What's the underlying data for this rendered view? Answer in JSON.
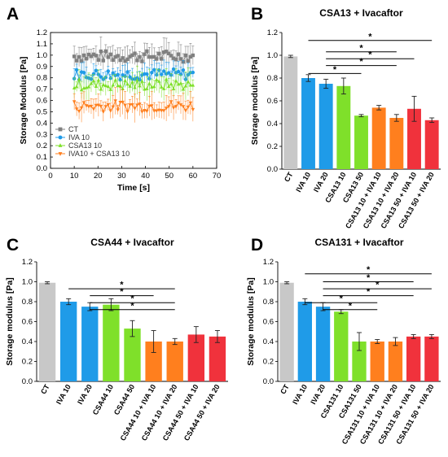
{
  "chart_data": [
    {
      "panel": "A",
      "type": "line",
      "title": "",
      "xlabel": "Time [s]",
      "ylabel": "Storage Modulus [Pa]",
      "xlim": [
        0,
        70
      ],
      "ylim": [
        0,
        1.2
      ],
      "xticks": [
        "0",
        "10",
        "20",
        "30",
        "40",
        "50",
        "60",
        "70"
      ],
      "yticks": [
        "0.0",
        "0.1",
        "0.2",
        "0.3",
        "0.4",
        "0.5",
        "0.6",
        "0.7",
        "0.8",
        "0.9",
        "1.0",
        "1.1",
        "1.2"
      ],
      "legend_position": "bottom-left",
      "series": [
        {
          "name": "CT",
          "color": "#808080",
          "marker": "square",
          "x_start": 10,
          "x_end": 60,
          "points": 50,
          "mean": 0.99,
          "spread": 0.05,
          "err": 0.1
        },
        {
          "name": "IVA 10",
          "color": "#1f9be8",
          "marker": "circle",
          "x_start": 10,
          "x_end": 60,
          "points": 50,
          "mean": 0.83,
          "spread": 0.05,
          "err": 0.08
        },
        {
          "name": "CSA13 10",
          "color": "#7fe02a",
          "marker": "triangle-up",
          "x_start": 10,
          "x_end": 60,
          "points": 50,
          "mean": 0.74,
          "spread": 0.05,
          "err": 0.1
        },
        {
          "name": "IVA10 + CSA13 10",
          "color": "#ff7f1e",
          "marker": "triangle-down",
          "x_start": 10,
          "x_end": 60,
          "points": 50,
          "mean": 0.55,
          "spread": 0.05,
          "err": 0.1
        }
      ]
    },
    {
      "panel": "B",
      "type": "bar",
      "title": "CSA13 + Ivacaftor",
      "xlabel": "",
      "ylabel": "Storage modulus [Pa]",
      "ylim": [
        0,
        1.2
      ],
      "yticks": [
        "0.0",
        "0.2",
        "0.4",
        "0.6",
        "0.8",
        "1.0",
        "1.2"
      ],
      "categories": [
        "CT",
        "IVA 10",
        "IVA 20",
        "CSA13 10",
        "CSA13 50",
        "CSA13 10 + IVA 10",
        "CSA13 10 + IVA 20",
        "CSA13 50 + IVA 10",
        "CSA13 50 + IVA 20"
      ],
      "values": [
        0.99,
        0.8,
        0.75,
        0.73,
        0.47,
        0.54,
        0.45,
        0.53,
        0.43
      ],
      "errors": [
        0.01,
        0.03,
        0.04,
        0.07,
        0.01,
        0.02,
        0.03,
        0.11,
        0.02
      ],
      "colors": [
        "#c8c8c8",
        "#1f9be8",
        "#1f9be8",
        "#7fe02a",
        "#7fe02a",
        "#ff7f1e",
        "#ff7f1e",
        "#f0323c",
        "#f0323c"
      ],
      "brackets": [
        {
          "from": 1,
          "to": 8,
          "y": 1.13,
          "label": "*"
        },
        {
          "from": 2,
          "to": 6,
          "y": 1.03,
          "label": "*"
        },
        {
          "from": 2,
          "to": 7,
          "y": 0.97,
          "label": "*"
        },
        {
          "from": 2,
          "to": 6,
          "y": 0.91,
          "label": "*"
        },
        {
          "from": 1,
          "to": 4,
          "y": 0.84,
          "label": "*"
        }
      ]
    },
    {
      "panel": "C",
      "type": "bar",
      "title": "CSA44 + Ivacaftor",
      "xlabel": "",
      "ylabel": "Storage modulus [Pa]",
      "ylim": [
        0,
        1.2
      ],
      "yticks": [
        "0.0",
        "0.2",
        "0.4",
        "0.6",
        "0.8",
        "1.0",
        "1.2"
      ],
      "categories": [
        "CT",
        "IVA 10",
        "IVA 20",
        "CSA44 10",
        "CSA44 50",
        "CSA44 10 + IVA 10",
        "CSA44 10 + IVA 20",
        "CSA44 50 + IVA 10",
        "CSA44 50 + IVA 20"
      ],
      "values": [
        0.99,
        0.8,
        0.75,
        0.77,
        0.53,
        0.4,
        0.4,
        0.47,
        0.45
      ],
      "errors": [
        0.01,
        0.03,
        0.04,
        0.06,
        0.08,
        0.11,
        0.03,
        0.08,
        0.06
      ],
      "colors": [
        "#c8c8c8",
        "#1f9be8",
        "#1f9be8",
        "#7fe02a",
        "#7fe02a",
        "#ff7f1e",
        "#ff7f1e",
        "#f0323c",
        "#f0323c"
      ],
      "brackets": [
        {
          "from": 1,
          "to": 6,
          "y": 0.93,
          "label": "*"
        },
        {
          "from": 2,
          "to": 5,
          "y": 0.86,
          "label": "*"
        },
        {
          "from": 2,
          "to": 6,
          "y": 0.79,
          "label": "*"
        },
        {
          "from": 2,
          "to": 6,
          "y": 0.72,
          "label": "*"
        }
      ]
    },
    {
      "panel": "D",
      "type": "bar",
      "title": "CSA131 + Ivacaftor",
      "xlabel": "",
      "ylabel": "Storage modulus [Pa]",
      "ylim": [
        0,
        1.2
      ],
      "yticks": [
        "0.0",
        "0.2",
        "0.4",
        "0.6",
        "0.8",
        "1.0",
        "1.2"
      ],
      "categories": [
        "CT",
        "IVA 10",
        "IVA 20",
        "CSA131 10",
        "CSA131 50",
        "CSA131 10 + IVA 10",
        "CSA131 10 + IVA 20",
        "CSA131 50 + IVA 10",
        "CSA131 50 + IVA 20"
      ],
      "values": [
        0.99,
        0.8,
        0.75,
        0.7,
        0.4,
        0.4,
        0.4,
        0.45,
        0.45
      ],
      "errors": [
        0.01,
        0.03,
        0.04,
        0.02,
        0.09,
        0.02,
        0.04,
        0.02,
        0.02
      ],
      "colors": [
        "#c8c8c8",
        "#1f9be8",
        "#1f9be8",
        "#7fe02a",
        "#7fe02a",
        "#ff7f1e",
        "#ff7f1e",
        "#f0323c",
        "#f0323c"
      ],
      "brackets": [
        {
          "from": 1,
          "to": 8,
          "y": 1.08,
          "label": "*"
        },
        {
          "from": 2,
          "to": 7,
          "y": 1.0,
          "label": "*"
        },
        {
          "from": 2,
          "to": 8,
          "y": 0.93,
          "label": "*"
        },
        {
          "from": 2,
          "to": 7,
          "y": 0.86,
          "label": "*"
        },
        {
          "from": 1,
          "to": 5,
          "y": 0.79,
          "label": "*"
        },
        {
          "from": 2,
          "to": 5,
          "y": 0.72,
          "label": "*"
        }
      ]
    }
  ]
}
